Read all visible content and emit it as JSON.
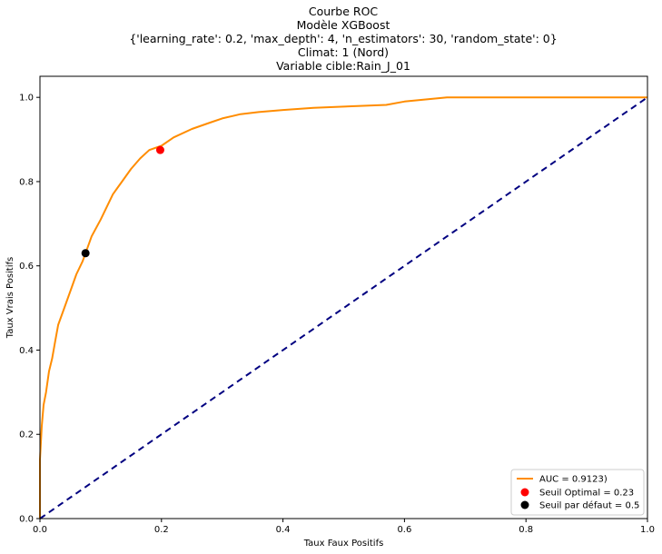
{
  "chart_data": {
    "type": "line",
    "title_lines": [
      "Courbe ROC",
      "Modèle XGBoost",
      "{'learning_rate': 0.2, 'max_depth': 4, 'n_estimators': 30, 'random_state': 0}",
      "Climat: 1 (Nord)",
      "Variable cible:Rain_J_01"
    ],
    "xlabel": "Taux Faux Positifs",
    "ylabel": "Taux Vrais Positifs",
    "xlim": [
      0.0,
      1.0
    ],
    "ylim": [
      0.0,
      1.05
    ],
    "xticks": [
      "0.0",
      "0.2",
      "0.4",
      "0.6",
      "0.8",
      "1.0"
    ],
    "yticks": [
      "0.0",
      "0.2",
      "0.4",
      "0.6",
      "0.8",
      "1.0"
    ],
    "legend_position": "lower-right",
    "series": [
      {
        "name": "AUC = 0.9123)",
        "kind": "line",
        "color": "#ff8c00",
        "x": [
          0.0,
          0.0,
          0.003,
          0.006,
          0.01,
          0.015,
          0.02,
          0.025,
          0.03,
          0.04,
          0.05,
          0.06,
          0.07,
          0.075,
          0.085,
          0.1,
          0.11,
          0.12,
          0.135,
          0.15,
          0.165,
          0.18,
          0.2,
          0.22,
          0.25,
          0.28,
          0.3,
          0.33,
          0.36,
          0.4,
          0.45,
          0.5,
          0.57,
          0.6,
          0.67,
          0.8,
          1.0
        ],
        "y": [
          0.0,
          0.14,
          0.22,
          0.27,
          0.3,
          0.35,
          0.38,
          0.42,
          0.46,
          0.5,
          0.54,
          0.58,
          0.61,
          0.63,
          0.67,
          0.71,
          0.74,
          0.77,
          0.8,
          0.83,
          0.855,
          0.875,
          0.885,
          0.905,
          0.925,
          0.94,
          0.95,
          0.96,
          0.965,
          0.97,
          0.975,
          0.978,
          0.982,
          0.99,
          1.0,
          1.0,
          1.0
        ]
      },
      {
        "name": "",
        "kind": "diagonal",
        "color": "#000080",
        "x": [
          0.0,
          1.0
        ],
        "y": [
          0.0,
          1.0
        ]
      }
    ],
    "points": [
      {
        "name": "Seuil Optimal = 0.23",
        "x": 0.198,
        "y": 0.875,
        "color": "#ff0000"
      },
      {
        "name": "Seuil par défaut = 0.5",
        "x": 0.075,
        "y": 0.63,
        "color": "#000000"
      }
    ]
  }
}
